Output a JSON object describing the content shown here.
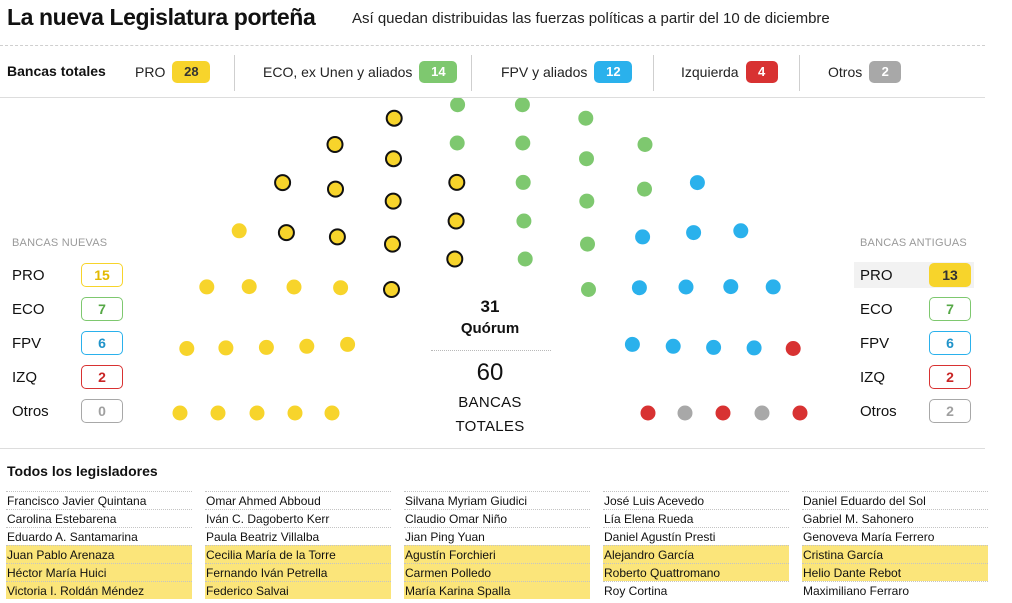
{
  "header": {
    "title": "La nueva Legislatura porteña",
    "subtitle": "Así quedan distribuidas las fuerzas políticas a partir del 10 de diciembre"
  },
  "totals": {
    "label": "Bancas totales",
    "items": [
      {
        "name": "PRO",
        "value": "28",
        "color": "#f7d42b"
      },
      {
        "name": "ECO, ex Unen y aliados",
        "value": "14",
        "color": "#7ec86f"
      },
      {
        "name": "FPV y aliados",
        "value": "12",
        "color": "#2ab1ec"
      },
      {
        "name": "Izquierda",
        "value": "4",
        "color": "#d83232"
      },
      {
        "name": "Otros",
        "value": "2",
        "color": "#a8a8a8"
      }
    ]
  },
  "nuevas": {
    "title": "BANCAS NUEVAS",
    "rows": [
      {
        "name": "PRO",
        "value": "15",
        "color": "#f7d42b",
        "text_color": "#e3b900"
      },
      {
        "name": "ECO",
        "value": "7",
        "color": "#7ec86f",
        "text_color": "#56a846"
      },
      {
        "name": "FPV",
        "value": "6",
        "color": "#2ab1ec",
        "text_color": "#2093c9"
      },
      {
        "name": "IZQ",
        "value": "2",
        "color": "#d83232",
        "text_color": "#c92626"
      },
      {
        "name": "Otros",
        "value": "0",
        "color": "#a8a8a8",
        "text_color": "#a0a0a0"
      }
    ]
  },
  "antiguas": {
    "title": "BANCAS ANTIGUAS",
    "rows": [
      {
        "name": "PRO",
        "value": "13",
        "color": "#f7d42b",
        "text_color": "#333333"
      },
      {
        "name": "ECO",
        "value": "7",
        "color": "#7ec86f",
        "text_color": "#56a846"
      },
      {
        "name": "FPV",
        "value": "6",
        "color": "#2ab1ec",
        "text_color": "#2093c9"
      },
      {
        "name": "IZQ",
        "value": "2",
        "color": "#d83232",
        "text_color": "#c92626"
      },
      {
        "name": "Otros",
        "value": "2",
        "color": "#a8a8a8",
        "text_color": "#a0a0a0"
      }
    ]
  },
  "center": {
    "quorum_value": "31",
    "quorum_label": "Quórum",
    "total_value": "60",
    "total_label_1": "BANCAS",
    "total_label_2": "TOTALES"
  },
  "chart_data": {
    "type": "hemicycle",
    "total_seats": 60,
    "quorum": 31,
    "series": [
      {
        "name": "PRO",
        "seats": 28,
        "nuevas": 15,
        "antiguas": 13,
        "color": "#f7d42b"
      },
      {
        "name": "ECO",
        "seats": 14,
        "nuevas": 7,
        "antiguas": 7,
        "color": "#7ec86f"
      },
      {
        "name": "FPV",
        "seats": 12,
        "nuevas": 6,
        "antiguas": 6,
        "color": "#2ab1ec"
      },
      {
        "name": "IZQ",
        "seats": 4,
        "nuevas": 2,
        "antiguas": 2,
        "color": "#d83232"
      },
      {
        "name": "Otros",
        "seats": 2,
        "nuevas": 0,
        "antiguas": 2,
        "color": "#a8a8a8"
      }
    ],
    "outlined_seats_note_color": "#111111"
  },
  "legislators": {
    "title": "Todos los legisladores",
    "highlight_color": "#fbe57a",
    "columns": [
      [
        {
          "name": "Francisco Javier Quintana",
          "highlight": false
        },
        {
          "name": "Carolina Estebarena",
          "highlight": false
        },
        {
          "name": "Eduardo A. Santamarina",
          "highlight": false
        },
        {
          "name": "Juan Pablo Arenaza",
          "highlight": true
        },
        {
          "name": "Héctor María Huici",
          "highlight": true
        },
        {
          "name": "Victoria I. Roldán Méndez",
          "highlight": true
        }
      ],
      [
        {
          "name": "Omar Ahmed Abboud",
          "highlight": false
        },
        {
          "name": "Iván C. Dagoberto Kerr",
          "highlight": false
        },
        {
          "name": "Paula Beatriz Villalba",
          "highlight": false
        },
        {
          "name": "Cecilia María de la Torre",
          "highlight": true
        },
        {
          "name": "Fernando Iván Petrella",
          "highlight": true
        },
        {
          "name": "Federico Salvai",
          "highlight": true
        }
      ],
      [
        {
          "name": "Silvana Myriam Giudici",
          "highlight": false
        },
        {
          "name": "Claudio Omar Niño",
          "highlight": false
        },
        {
          "name": "Jian Ping Yuan",
          "highlight": false
        },
        {
          "name": "Agustín Forchieri",
          "highlight": true
        },
        {
          "name": "Carmen Polledo",
          "highlight": true
        },
        {
          "name": "María Karina Spalla",
          "highlight": true
        }
      ],
      [
        {
          "name": "José Luis Acevedo",
          "highlight": false
        },
        {
          "name": "Lía Elena Rueda",
          "highlight": false
        },
        {
          "name": "Daniel Agustín Presti",
          "highlight": false
        },
        {
          "name": "Alejandro García",
          "highlight": true
        },
        {
          "name": "Roberto Quattromano",
          "highlight": true
        },
        {
          "name": "Roy Cortina",
          "highlight": false
        }
      ],
      [
        {
          "name": "Daniel Eduardo del Sol",
          "highlight": false
        },
        {
          "name": "Gabriel M. Sahonero",
          "highlight": false
        },
        {
          "name": "Genoveva María Ferrero",
          "highlight": false
        },
        {
          "name": "Cristina García",
          "highlight": true
        },
        {
          "name": "Helio Dante Rebot",
          "highlight": true
        },
        {
          "name": "Maximiliano Ferraro",
          "highlight": false
        }
      ]
    ]
  }
}
